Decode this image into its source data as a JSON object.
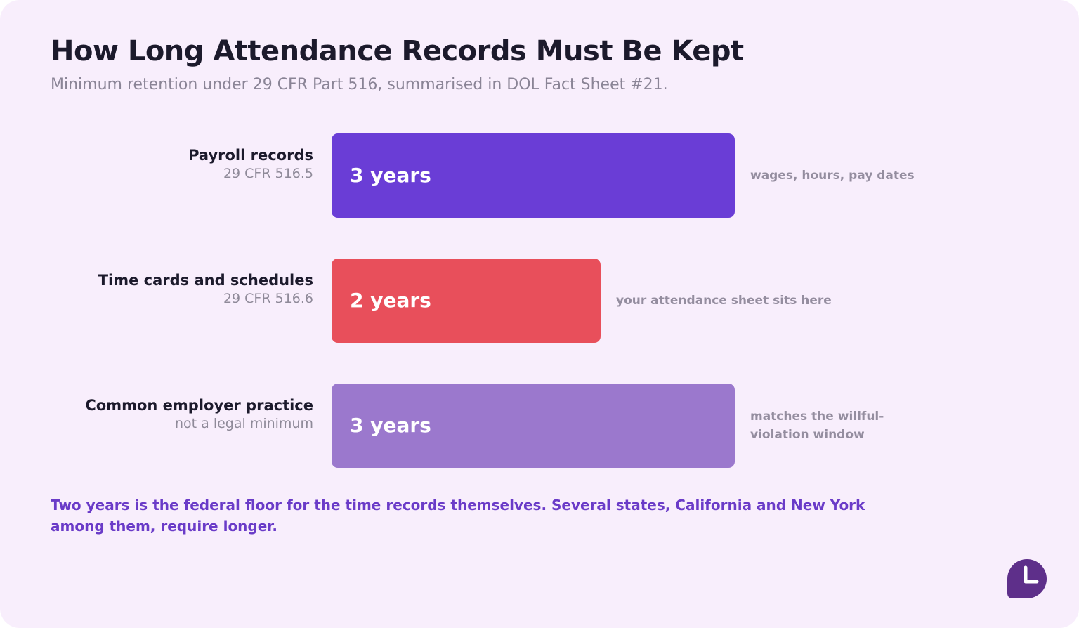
{
  "header": {
    "title": "How Long Attendance Records Must Be Kept",
    "subtitle": "Minimum retention under 29 CFR Part 516, summarised in DOL Fact Sheet #21."
  },
  "chart_data": {
    "type": "bar",
    "orientation": "horizontal",
    "title": "How Long Attendance Records Must Be Kept",
    "subtitle": "Minimum retention under 29 CFR Part 516, summarised in DOL Fact Sheet #21.",
    "categories": [
      "Payroll records",
      "Time cards and schedules",
      "Common employer practice"
    ],
    "citations": [
      "29 CFR 516.5",
      "29 CFR 516.6",
      "not a legal minimum"
    ],
    "values": [
      3,
      2,
      3
    ],
    "value_labels": [
      "3 years",
      "2 years",
      "3 years"
    ],
    "notes": [
      "wages, hours, pay dates",
      "your attendance sheet sits here",
      "matches the willful-violation window"
    ],
    "unit": "years",
    "colors": [
      "#6a3dd6",
      "#e84f5b",
      "#9b78cd"
    ],
    "xlim": [
      0,
      3
    ],
    "grid": false,
    "legend": "none"
  },
  "footnote": "Two years is the federal floor for the time records themselves. Several states, California and New York among them, require longer.",
  "logo": {
    "icon": "clock-icon",
    "color": "#5e2f8a"
  }
}
